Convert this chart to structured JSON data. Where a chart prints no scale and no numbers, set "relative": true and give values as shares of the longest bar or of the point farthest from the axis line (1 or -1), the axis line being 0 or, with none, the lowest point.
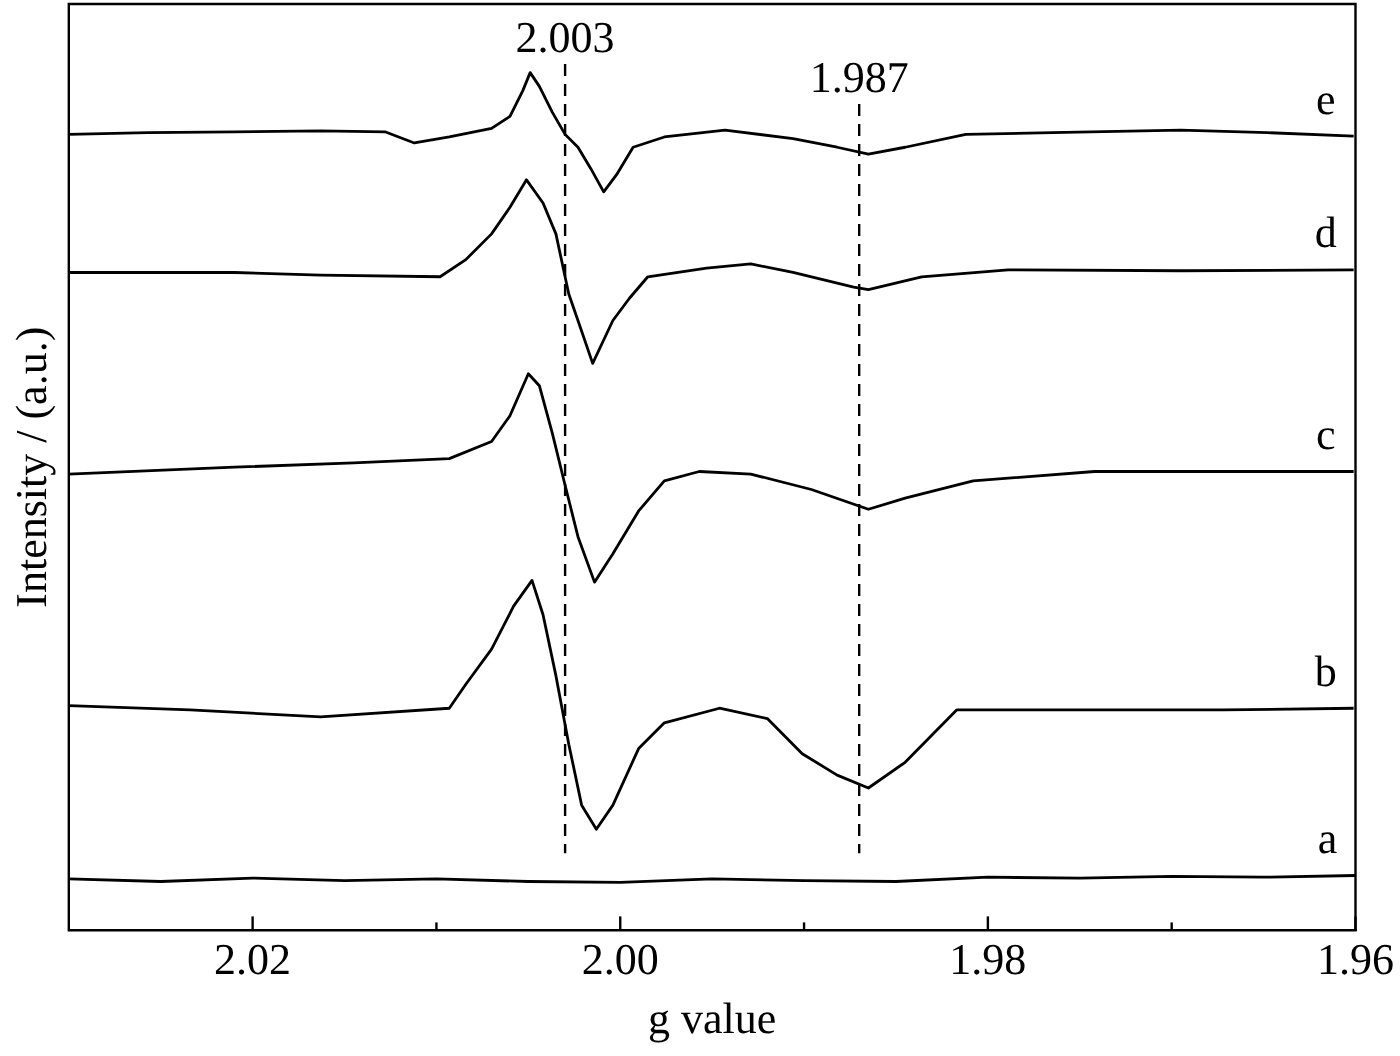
{
  "chart_data": {
    "type": "line",
    "xlabel": "g value",
    "ylabel": "Intensity / (a.u.)",
    "relative": true,
    "xlim": [
      2.03,
      1.96
    ],
    "xticks": [
      2.02,
      {
        "value": 2.01,
        "label": null
      },
      {
        "value": 2,
        "label": "2.00"
      },
      {
        "value": 1.99,
        "label": null
      },
      1.98,
      {
        "value": 1.97,
        "label": null
      },
      1.96
    ],
    "grid": false,
    "legend": false,
    "marker": "none",
    "line_style": "solid",
    "ref_lines": [
      {
        "axis": "x",
        "value": 2.003,
        "label": "2.003",
        "line_style": "dashed",
        "color": "#000000"
      },
      {
        "axis": "x",
        "value": 1.987,
        "label": "1.987",
        "line_style": "dashed",
        "color": "#000000"
      }
    ],
    "series": [
      {
        "name": "a",
        "color": "#000000",
        "x": [
          2.03,
          2.025,
          2.02,
          2.015,
          2.01,
          2.005,
          2.0,
          1.995,
          1.99,
          1.985,
          1.98,
          1.975,
          1.97,
          1.965,
          1.96
        ],
        "values": [
          0.06,
          0.057,
          0.061,
          0.058,
          0.06,
          0.057,
          0.056,
          0.06,
          0.058,
          0.057,
          0.062,
          0.061,
          0.063,
          0.062,
          0.064
        ]
      },
      {
        "name": "b",
        "color": "#000000",
        "x": [
          2.03,
          2.0234,
          2.0163,
          2.0093,
          2.0084,
          2.007,
          2.0058,
          2.0048,
          2.0042,
          2.0035,
          2.0028,
          2.0021,
          2.0013,
          2.0004,
          1.999,
          1.9976,
          1.9946,
          1.992,
          1.9901,
          1.9882,
          1.9865,
          1.9845,
          1.9817,
          1.9742,
          1.9672,
          1.9601
        ],
        "values": [
          0.262,
          0.257,
          0.249,
          0.259,
          0.287,
          0.328,
          0.378,
          0.408,
          0.368,
          0.297,
          0.217,
          0.146,
          0.118,
          0.146,
          0.212,
          0.242,
          0.259,
          0.247,
          0.206,
          0.181,
          0.166,
          0.196,
          0.257,
          0.257,
          0.257,
          0.259
        ]
      },
      {
        "name": "c",
        "color": "#000000",
        "x": [
          2.03,
          2.021,
          2.0145,
          2.0093,
          2.007,
          2.006,
          2.005,
          2.0044,
          2.0037,
          2.003,
          2.0023,
          2.0014,
          2.0004,
          1.999,
          1.9976,
          1.9957,
          1.9929,
          1.9896,
          1.9865,
          1.9845,
          1.9808,
          1.9742,
          1.9672,
          1.9601
        ],
        "values": [
          0.532,
          0.54,
          0.545,
          0.55,
          0.57,
          0.6,
          0.649,
          0.635,
          0.58,
          0.519,
          0.459,
          0.406,
          0.439,
          0.489,
          0.524,
          0.535,
          0.532,
          0.514,
          0.491,
          0.504,
          0.524,
          0.535,
          0.535,
          0.535
        ]
      },
      {
        "name": "d",
        "color": "#000000",
        "x": [
          2.03,
          2.021,
          2.0163,
          2.0098,
          2.0084,
          2.007,
          2.006,
          2.0051,
          2.0042,
          2.0035,
          2.0028,
          2.0023,
          2.0015,
          2.0004,
          1.9995,
          1.9985,
          1.9953,
          1.9929,
          1.9906,
          1.9873,
          1.9865,
          1.9836,
          1.9789,
          1.9695,
          1.9601
        ],
        "values": [
          0.767,
          0.767,
          0.764,
          0.762,
          0.782,
          0.812,
          0.843,
          0.875,
          0.848,
          0.812,
          0.742,
          0.711,
          0.661,
          0.711,
          0.737,
          0.762,
          0.772,
          0.777,
          0.767,
          0.75,
          0.747,
          0.762,
          0.77,
          0.769,
          0.77
        ]
      },
      {
        "name": "e",
        "color": "#000000",
        "x": [
          2.03,
          2.0257,
          2.021,
          2.0163,
          2.0128,
          2.0112,
          2.0093,
          2.007,
          2.006,
          2.0053,
          2.0049,
          2.0044,
          2.0037,
          2.003,
          2.0023,
          2.0016,
          2.0009,
          2.0002,
          1.9993,
          1.9976,
          1.9943,
          1.9906,
          1.9882,
          1.9865,
          1.9845,
          1.9812,
          1.9765,
          1.9695,
          1.9648,
          1.9601
        ],
        "values": [
          0.928,
          0.93,
          0.931,
          0.932,
          0.931,
          0.918,
          0.925,
          0.935,
          0.949,
          0.979,
          1.0,
          0.984,
          0.954,
          0.928,
          0.913,
          0.888,
          0.861,
          0.881,
          0.913,
          0.925,
          0.933,
          0.923,
          0.913,
          0.905,
          0.913,
          0.928,
          0.93,
          0.933,
          0.93,
          0.926
        ]
      }
    ]
  }
}
